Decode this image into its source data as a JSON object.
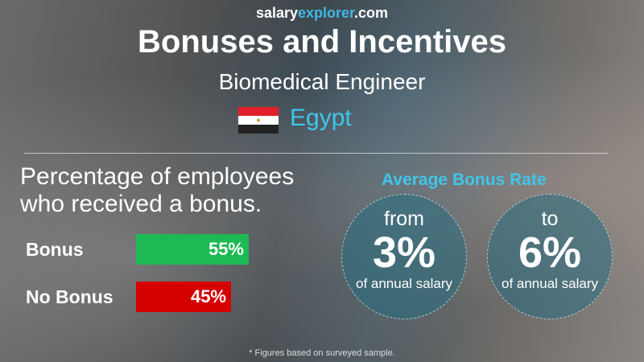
{
  "site": {
    "part1": "salary",
    "part2": "explorer",
    "part3": ".com"
  },
  "title": "Bonuses and Incentives",
  "job": "Biomedical Engineer",
  "country": "Egypt",
  "flag_icon": "egypt-flag",
  "percentage_heading": "Percentage of employees who received a bonus.",
  "bars": [
    {
      "label": "Bonus",
      "value": 55,
      "text": "55%",
      "color": "#1db954"
    },
    {
      "label": "No Bonus",
      "value": 45,
      "text": "45%",
      "color": "#d50000"
    }
  ],
  "average": {
    "heading": "Average Bonus Rate",
    "from": {
      "prefix": "from",
      "value": "3%",
      "suffix": "of annual salary"
    },
    "to": {
      "prefix": "to",
      "value": "6%",
      "suffix": "of annual salary"
    }
  },
  "footnote": "* Figures based on surveyed sample."
}
